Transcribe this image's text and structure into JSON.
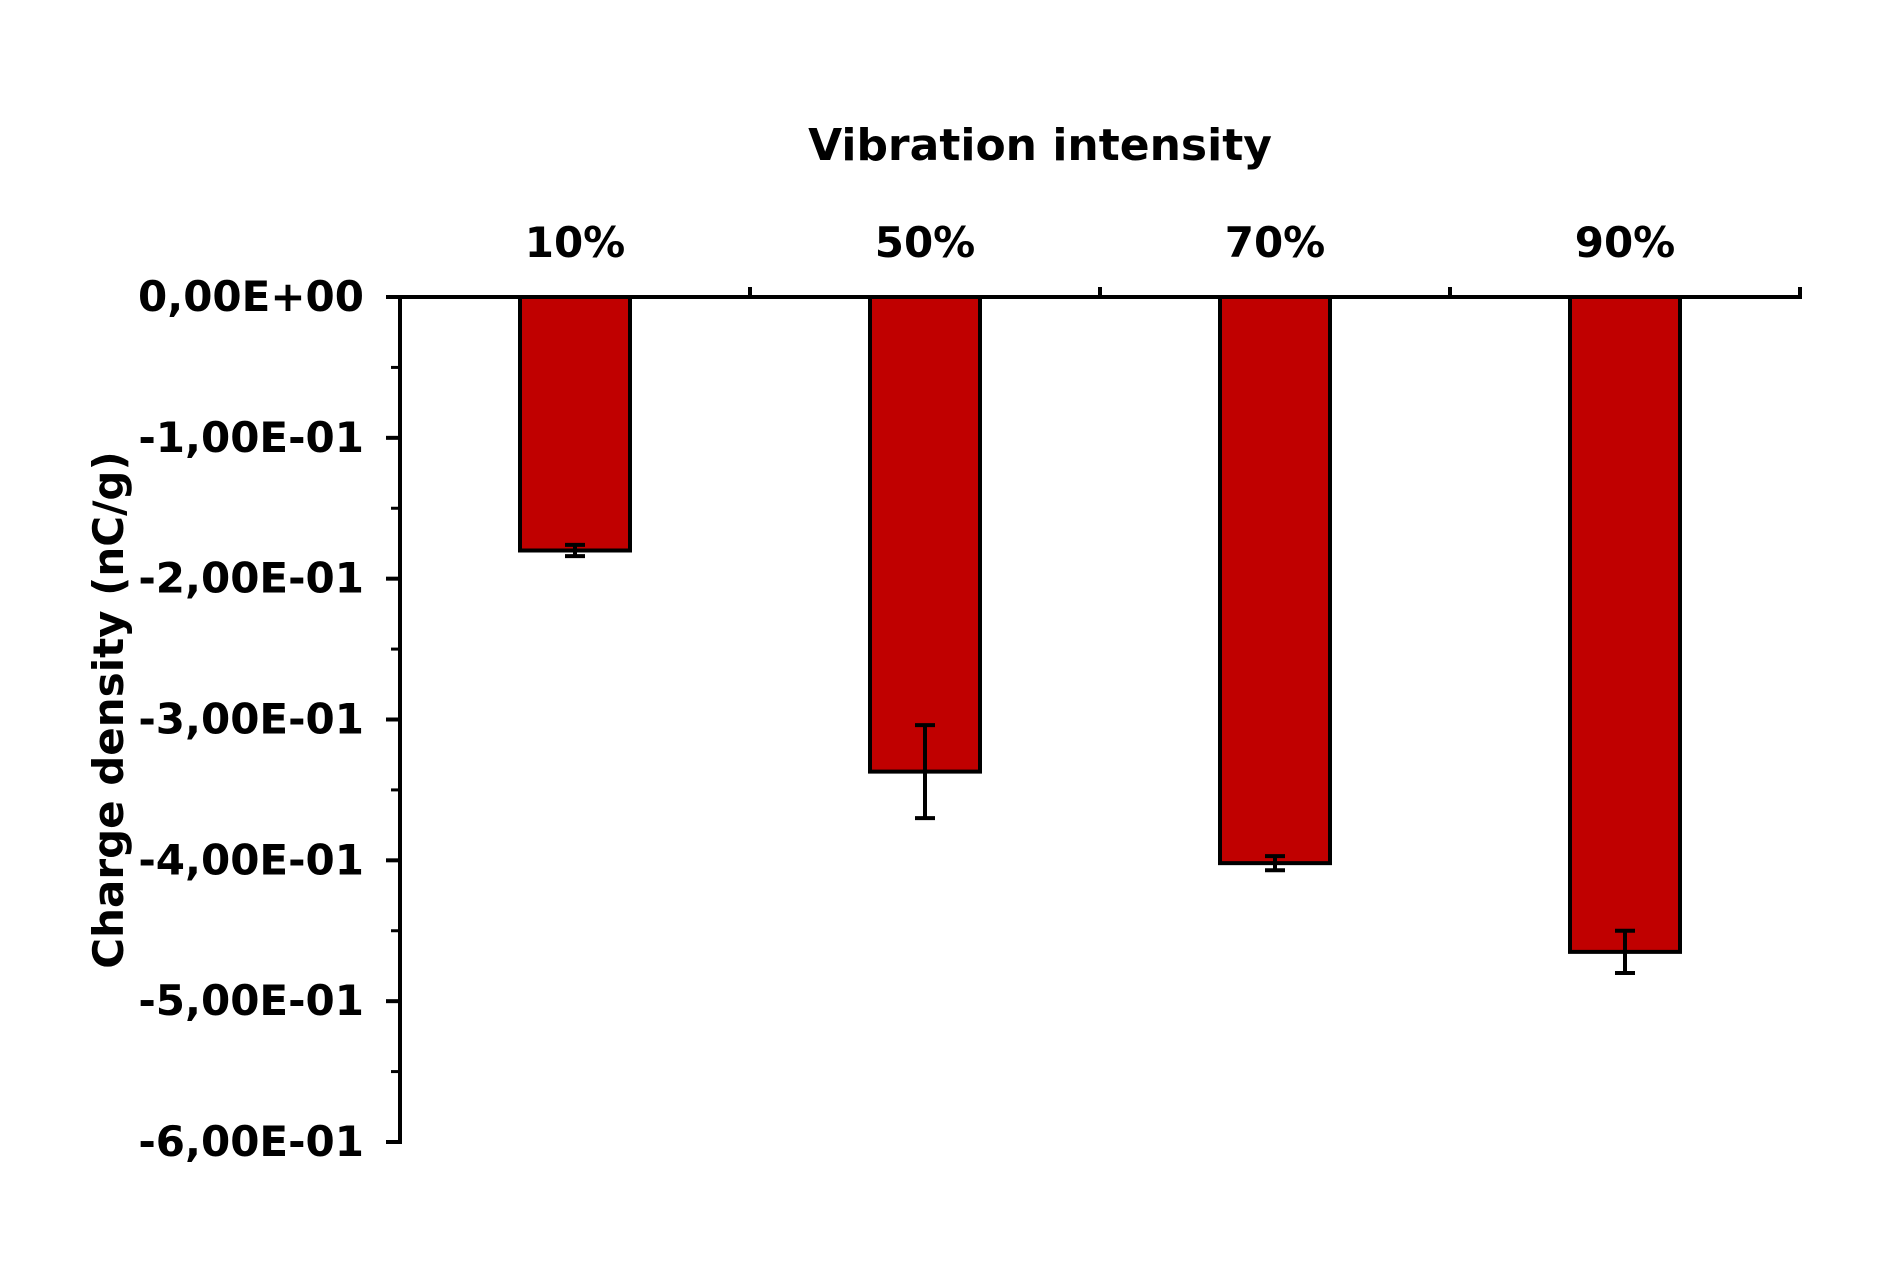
{
  "chart_data": {
    "type": "bar",
    "title": "",
    "xlabel": "Vibration intensity",
    "ylabel": "Charge density (nC/g)",
    "categories": [
      "10%",
      "50%",
      "70%",
      "90%"
    ],
    "series": [
      {
        "values": [
          -0.18,
          -0.337,
          -0.402,
          -0.465
        ],
        "errors": [
          0.004,
          0.033,
          0.005,
          0.015
        ]
      }
    ],
    "ylim": [
      -0.6,
      0
    ],
    "yticks": [
      0,
      -0.1,
      -0.2,
      -0.3,
      -0.4,
      -0.5,
      -0.6
    ],
    "ytick_labels": [
      "0,00E+00",
      "-1,00E-01",
      "-2,00E-01",
      "-3,00E-01",
      "-4,00E-01",
      "-5,00E-01",
      "-6,00E-01"
    ],
    "x_axis_position": "top",
    "grid": false,
    "legend": "none",
    "colors": {
      "bar_fill": "#c00000",
      "bar_stroke": "#000000",
      "axis": "#000000"
    }
  }
}
